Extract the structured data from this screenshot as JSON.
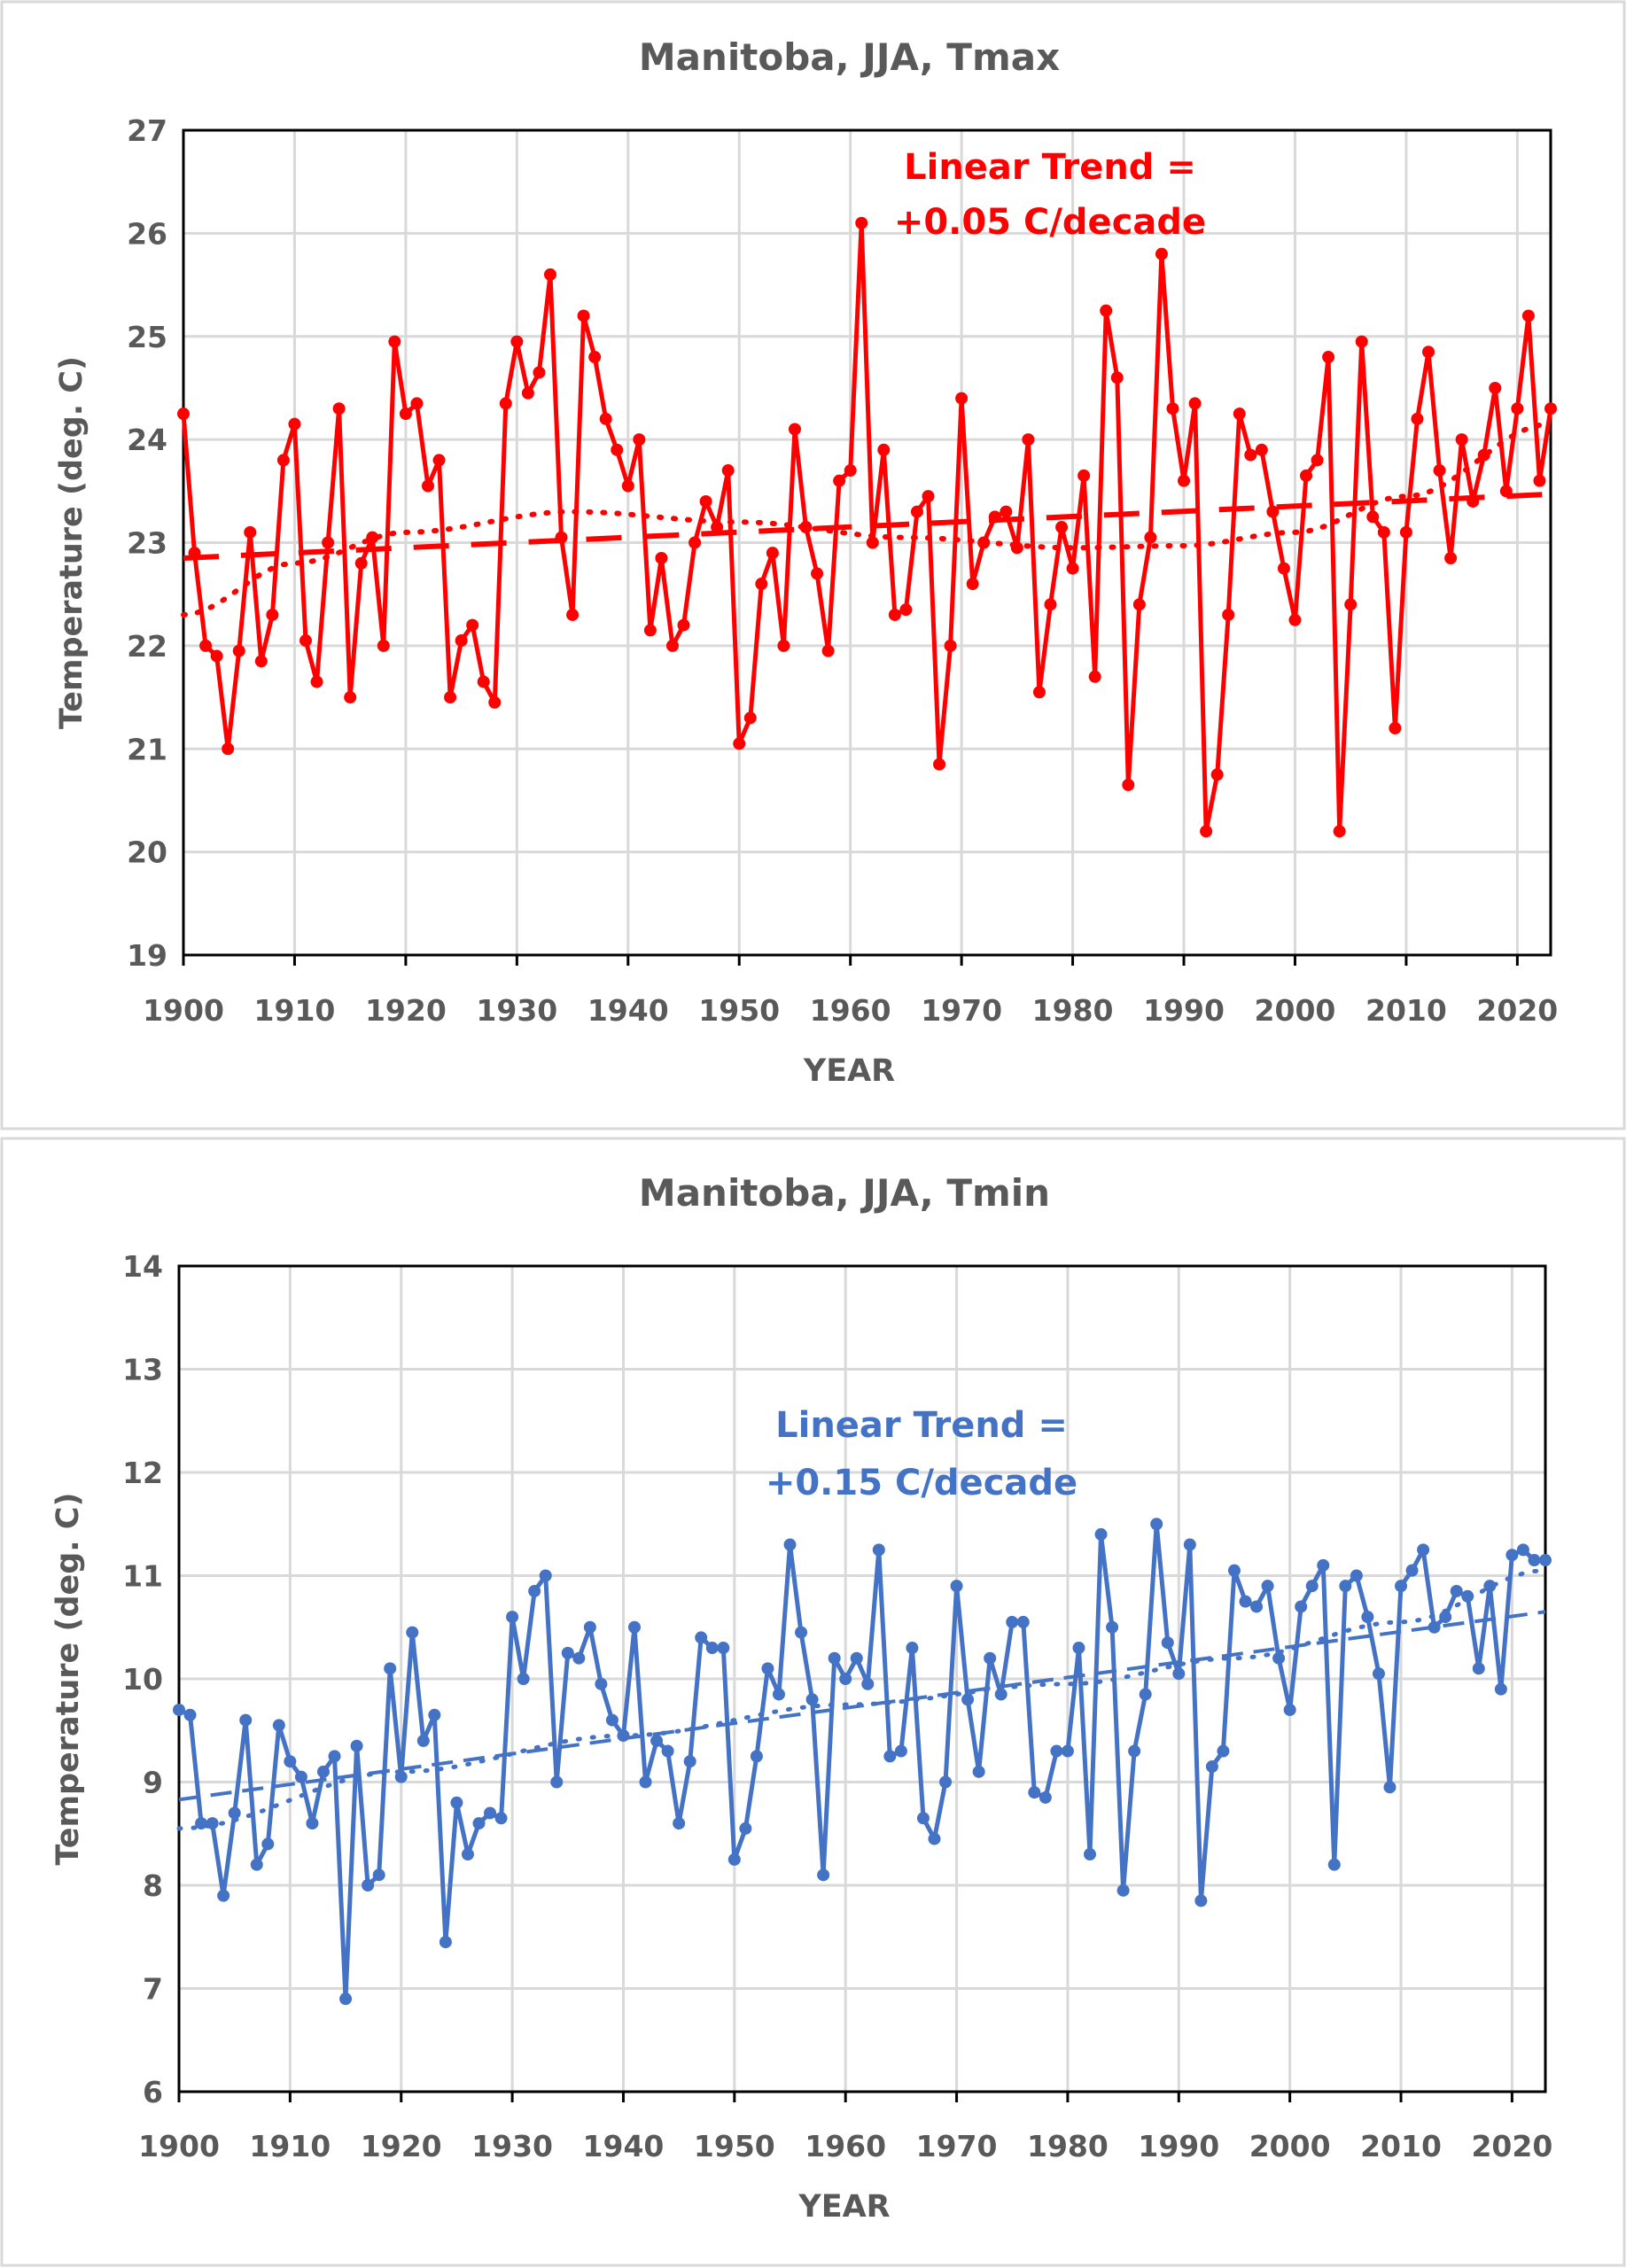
{
  "chart_data": [
    {
      "type": "line",
      "title": "Manitoba, JJA, Tmax",
      "xlabel": "YEAR",
      "ylabel": "Temperature (deg. C)",
      "xlim": [
        1900,
        2023
      ],
      "ylim": [
        19,
        27
      ],
      "xticks": [
        1900,
        1910,
        1920,
        1930,
        1940,
        1950,
        1960,
        1970,
        1980,
        1990,
        2000,
        2010,
        2020
      ],
      "yticks": [
        19,
        20,
        21,
        22,
        23,
        24,
        25,
        26,
        27
      ],
      "grid": true,
      "color": "#FF0000",
      "annotation": [
        "Linear Trend =",
        "+0.05 C/decade"
      ],
      "x_start": 1900,
      "values": [
        24.25,
        22.9,
        22.0,
        21.9,
        21.0,
        21.95,
        23.1,
        21.85,
        22.3,
        23.8,
        24.15,
        22.05,
        21.65,
        23.0,
        24.3,
        21.5,
        22.8,
        23.05,
        22.0,
        24.95,
        24.25,
        24.35,
        23.55,
        23.8,
        21.5,
        22.05,
        22.2,
        21.65,
        21.45,
        24.35,
        24.95,
        24.45,
        24.65,
        25.6,
        23.05,
        22.3,
        25.2,
        24.8,
        24.2,
        23.9,
        23.55,
        24.0,
        22.15,
        22.85,
        22.0,
        22.2,
        23.0,
        23.4,
        23.15,
        23.7,
        21.05,
        21.3,
        22.6,
        22.9,
        22.0,
        24.1,
        23.15,
        22.7,
        21.95,
        23.6,
        23.7,
        26.1,
        23.0,
        23.9,
        22.3,
        22.35,
        23.3,
        23.45,
        20.85,
        22.0,
        24.4,
        22.6,
        23.0,
        23.25,
        23.3,
        22.95,
        24.0,
        21.55,
        22.4,
        23.15,
        22.75,
        23.65,
        21.7,
        25.25,
        24.6,
        20.65,
        22.4,
        23.05,
        25.8,
        24.3,
        23.6,
        24.35,
        20.2,
        20.75,
        22.3,
        24.25,
        23.85,
        23.9,
        23.3,
        22.75,
        22.25,
        23.65,
        23.8,
        24.8,
        20.2,
        22.4,
        24.95,
        23.25,
        23.1,
        21.2,
        23.1,
        24.2,
        24.85,
        23.7,
        22.85,
        24.0,
        23.4,
        23.85,
        24.5,
        23.5,
        24.3,
        25.2,
        23.6,
        24.3
      ],
      "linear_trend": {
        "years": [
          1900,
          2023
        ],
        "values": [
          22.85,
          23.47
        ]
      },
      "poly_trend": {
        "years": [
          1900,
          1910,
          1920,
          1935,
          1950,
          1965,
          1980,
          1990,
          2000,
          2010,
          2023
        ],
        "values": [
          22.3,
          22.8,
          23.1,
          23.3,
          23.2,
          23.05,
          22.95,
          22.97,
          23.1,
          23.45,
          24.15
        ]
      }
    },
    {
      "type": "line",
      "title": "Manitoba, JJA, Tmin",
      "xlabel": "YEAR",
      "ylabel": "Temperature (deg. C)",
      "xlim": [
        1900,
        2023
      ],
      "ylim": [
        6,
        14
      ],
      "xticks": [
        1900,
        1910,
        1920,
        1930,
        1940,
        1950,
        1960,
        1970,
        1980,
        1990,
        2000,
        2010,
        2020
      ],
      "yticks": [
        6,
        7,
        8,
        9,
        10,
        11,
        12,
        13,
        14
      ],
      "grid": true,
      "color": "#4472C4",
      "annotation": [
        "Linear Trend =",
        "+0.15 C/decade"
      ],
      "x_start": 1900,
      "values": [
        9.7,
        9.65,
        8.6,
        8.6,
        7.9,
        8.7,
        9.6,
        8.2,
        8.4,
        9.55,
        9.2,
        9.05,
        8.6,
        9.1,
        9.25,
        6.9,
        9.35,
        8.0,
        8.1,
        10.1,
        9.05,
        10.45,
        9.4,
        9.65,
        7.45,
        8.8,
        8.3,
        8.6,
        8.7,
        8.65,
        10.6,
        10.0,
        10.85,
        11.0,
        9.0,
        10.25,
        10.2,
        10.5,
        9.95,
        9.6,
        9.45,
        10.5,
        9.0,
        9.4,
        9.3,
        8.6,
        9.2,
        10.4,
        10.3,
        10.3,
        8.25,
        8.55,
        9.25,
        10.1,
        9.85,
        11.3,
        10.45,
        9.8,
        8.1,
        10.2,
        10.0,
        10.2,
        9.95,
        11.25,
        9.25,
        9.3,
        10.3,
        8.65,
        8.45,
        9.0,
        10.9,
        9.8,
        9.1,
        10.2,
        9.85,
        10.55,
        10.55,
        8.9,
        8.85,
        9.3,
        9.3,
        10.3,
        8.3,
        11.4,
        10.5,
        7.95,
        9.3,
        9.85,
        11.5,
        10.35,
        10.05,
        11.3,
        7.85,
        9.15,
        9.3,
        11.05,
        10.75,
        10.7,
        10.9,
        10.2,
        9.7,
        10.7,
        10.9,
        11.1,
        8.2,
        10.9,
        11.0,
        10.6,
        10.05,
        8.95,
        10.9,
        11.05,
        11.25,
        10.5,
        10.6,
        10.85,
        10.8,
        10.1,
        10.9,
        9.9,
        11.2,
        11.25,
        11.15,
        11.15
      ],
      "linear_trend": {
        "years": [
          1900,
          2023
        ],
        "values": [
          8.83,
          10.65
        ]
      },
      "poly_trend": {
        "years": [
          1900,
          1920,
          1940,
          1960,
          1980,
          1995,
          2010,
          2023
        ],
        "values": [
          8.55,
          9.1,
          9.45,
          9.75,
          9.95,
          10.2,
          10.55,
          11.05
        ]
      }
    }
  ]
}
